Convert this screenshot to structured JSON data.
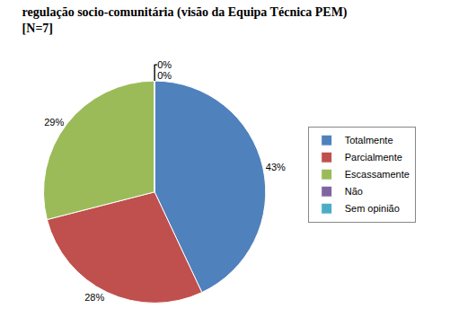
{
  "chart_data": {
    "type": "pie",
    "title": "regulação socio-comunitária (visão da Equipa Técnica PEM) [N=7]",
    "categories": [
      "Totalmente",
      "Parcialmente",
      "Escassamente",
      "Não",
      "Sem opinião"
    ],
    "values": [
      43,
      28,
      29,
      0,
      0
    ],
    "value_labels": [
      "43%",
      "28%",
      "29%",
      "0%",
      "0%"
    ],
    "colors": [
      "#4f81bd",
      "#c0504d",
      "#9bbb59",
      "#8064a2",
      "#4bacc6"
    ],
    "data_labels": true,
    "legend": "right"
  }
}
